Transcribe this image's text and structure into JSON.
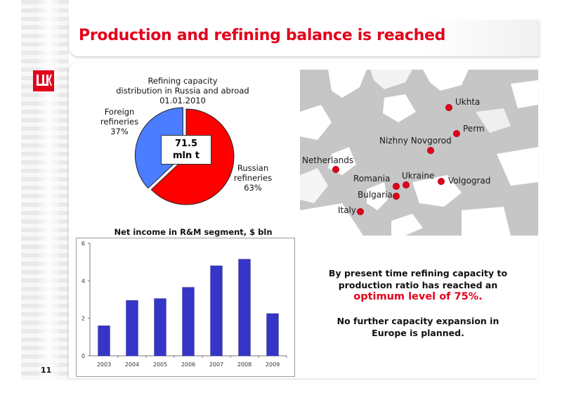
{
  "title": "Production and refining balance is reached",
  "page_number": "11",
  "colors": {
    "brand_red": "#e3001b",
    "russian_slice": "#ff0000",
    "foreign_slice": "#4a7dff",
    "bar": "#3535c8"
  },
  "pie": {
    "title_line1": "Refining capacity",
    "title_line2": "distribution in Russia and abroad",
    "title_line3": "01.01.2010",
    "center_value": "71.5",
    "center_unit": "mln t",
    "foreign": {
      "line1": "Foreign",
      "line2": "refineries",
      "pct": "37%"
    },
    "russian": {
      "line1": "Russian",
      "line2": "refineries",
      "pct": "63%"
    }
  },
  "chart_data": [
    {
      "type": "pie",
      "title": "Refining capacity distribution in Russia and abroad 01.01.2010",
      "categories": [
        "Russian refineries",
        "Foreign refineries"
      ],
      "values": [
        63,
        37
      ],
      "center_label": "71.5 mln t"
    },
    {
      "type": "bar",
      "title": "Net income in R&M segment, $ bln",
      "categories": [
        "2003",
        "2004",
        "2005",
        "2006",
        "2007",
        "2008",
        "2009"
      ],
      "values": [
        1.6,
        2.95,
        3.05,
        3.65,
        4.8,
        5.15,
        2.25
      ],
      "ylim": [
        0,
        6
      ],
      "yticks": [
        "0",
        "2",
        "4",
        "6"
      ],
      "xlabel": "",
      "ylabel": "",
      "grid": false
    }
  ],
  "map": {
    "cities": [
      {
        "name": "Ukhta"
      },
      {
        "name": "Perm"
      },
      {
        "name": "Nizhny Novgorod"
      },
      {
        "name": "Netherlands"
      },
      {
        "name": "Romania"
      },
      {
        "name": "Ukraine"
      },
      {
        "name": "Volgograd"
      },
      {
        "name": "Bulgaria"
      },
      {
        "name": "Italy"
      }
    ]
  },
  "statement": {
    "line1": "By present time refining capacity to",
    "line2": "production ratio has reached an",
    "highlight": "optimum level of 75%.",
    "line3": "No further capacity expansion in",
    "line4": "Europe is planned."
  }
}
